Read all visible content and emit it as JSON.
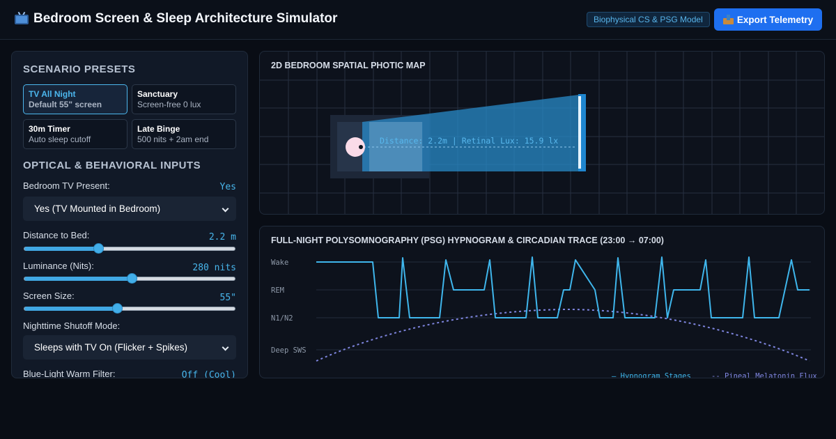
{
  "header": {
    "title": "Bedroom Screen & Sleep Architecture Simulator",
    "badge": "Biophysical CS & PSG Model",
    "export_label": "Export Telemetry"
  },
  "presets": {
    "title": "SCENARIO PRESETS",
    "items": [
      {
        "name": "TV All Night",
        "desc": "Default 55\" screen",
        "active": true
      },
      {
        "name": "Sanctuary",
        "desc": "Screen-free 0 lux",
        "active": false
      },
      {
        "name": "30m Timer",
        "desc": "Auto sleep cutoff",
        "active": false
      },
      {
        "name": "Late Binge",
        "desc": "500 nits + 2am end",
        "active": false
      }
    ]
  },
  "inputs": {
    "title": "OPTICAL & BEHAVIORAL INPUTS",
    "tv_present": {
      "label": "Bedroom TV Present:",
      "value": "Yes",
      "selected": "Yes (TV Mounted in Bedroom)"
    },
    "distance": {
      "label": "Distance to Bed:",
      "value": "2.2 m",
      "fraction": 0.35
    },
    "luminance": {
      "label": "Luminance (Nits):",
      "value": "280 nits",
      "fraction": 0.51
    },
    "screen_size": {
      "label": "Screen Size:",
      "value": "55\"",
      "fraction": 0.44
    },
    "shutoff": {
      "label": "Nighttime Shutoff Mode:",
      "selected": "Sleeps with TV On (Flicker + Spikes)"
    },
    "blue_filter": {
      "label": "Blue-Light Warm Filter:",
      "value": "Off (Cool)"
    }
  },
  "map": {
    "title": "2D BEDROOM SPATIAL PHOTIC MAP",
    "readout": "Distance: 2.2m | Retinal Lux: 15.9 lx",
    "beam_color": "#2a8fd0",
    "head_color": "#fadbe8"
  },
  "psg": {
    "title": "FULL-NIGHT POLYSOMNOGRAPHY (PSG) HYPNOGRAM & CIRCADIAN TRACE (23:00 → 07:00)",
    "stage_labels": [
      "Wake",
      "REM",
      "N1/N2",
      "Deep SWS"
    ],
    "legend": {
      "hypnogram": "— Hypnogram Stages",
      "melatonin": "-- Pineal Melatonin Flux"
    },
    "hypnogram_color": "#3fb6ec",
    "melatonin_color": "#7f86e0"
  }
}
